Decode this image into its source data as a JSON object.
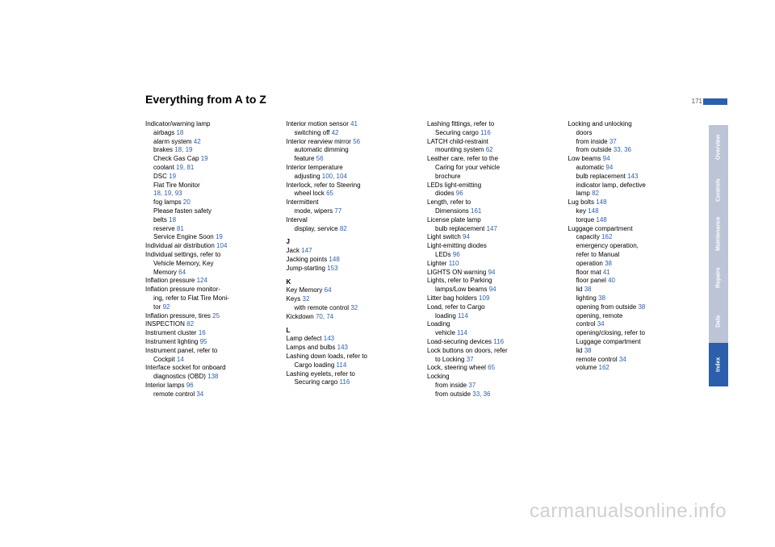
{
  "title": "Everything from A to Z",
  "pageNumber": "171",
  "watermark": "carmanualsonline.info",
  "sidebar": [
    {
      "label": "Overview",
      "active": false
    },
    {
      "label": "Controls",
      "active": false
    },
    {
      "label": "Maintenance",
      "active": false
    },
    {
      "label": "Repairs",
      "active": false
    },
    {
      "label": "Data",
      "active": false
    },
    {
      "label": "Index",
      "active": true
    }
  ],
  "columns": [
    [
      {
        "t": "Indicator/warning lamp"
      },
      {
        "t": "airbags ",
        "p": "18",
        "i": 1
      },
      {
        "t": "alarm system ",
        "p": "42",
        "i": 1
      },
      {
        "t": "brakes ",
        "p": "18, 19",
        "i": 1
      },
      {
        "t": "Check Gas Cap ",
        "p": "19",
        "i": 1
      },
      {
        "t": "coolant ",
        "p": "19, 81",
        "i": 1
      },
      {
        "t": "DSC ",
        "p": "19",
        "i": 1
      },
      {
        "t": "Flat Tire Monitor",
        "i": 1
      },
      {
        "t": "",
        "p": "18, 19, 93",
        "i": 1
      },
      {
        "t": "fog lamps ",
        "p": "20",
        "i": 1
      },
      {
        "t": "Please fasten safety",
        "i": 1
      },
      {
        "t": "belts ",
        "p": "18",
        "i": 1
      },
      {
        "t": "reserve ",
        "p": "81",
        "i": 1
      },
      {
        "t": "Service Engine Soon ",
        "p": "19",
        "i": 1
      },
      {
        "t": "Individual air distribution ",
        "p": "104"
      },
      {
        "t": "Individual settings, refer to"
      },
      {
        "t": "Vehicle Memory, Key",
        "i": 1
      },
      {
        "t": "Memory ",
        "p": "64",
        "i": 1
      },
      {
        "t": "Inflation pressure ",
        "p": "124"
      },
      {
        "t": "Inflation pressure monitor-"
      },
      {
        "t": "ing, refer to Flat Tire Moni-",
        "i": 1
      },
      {
        "t": "tor ",
        "p": "92",
        "i": 1
      },
      {
        "t": "Inflation pressure, tires ",
        "p": "25"
      },
      {
        "t": "INSPECTION ",
        "p": "82"
      },
      {
        "t": "Instrument cluster ",
        "p": "16"
      },
      {
        "t": "Instrument lighting ",
        "p": "95"
      },
      {
        "t": "Instrument panel, refer to"
      },
      {
        "t": "Cockpit ",
        "p": "14",
        "i": 1
      },
      {
        "t": "Interface socket for onboard"
      },
      {
        "t": "diagnostics (OBD) ",
        "p": "138",
        "i": 1
      },
      {
        "t": "Interior lamps ",
        "p": "96"
      },
      {
        "t": "remote control ",
        "p": "34",
        "i": 1
      }
    ],
    [
      {
        "t": "Interior motion sensor ",
        "p": "41"
      },
      {
        "t": "switching off ",
        "p": "42",
        "i": 1
      },
      {
        "t": "Interior rearview mirror ",
        "p": "56"
      },
      {
        "t": "automatic dimming",
        "i": 1
      },
      {
        "t": "feature ",
        "p": "56",
        "i": 1
      },
      {
        "t": "Interior temperature"
      },
      {
        "t": "adjusting ",
        "p": "100, 104",
        "i": 1
      },
      {
        "t": "Interlock, refer to Steering"
      },
      {
        "t": "wheel lock ",
        "p": "65",
        "i": 1
      },
      {
        "t": "Intermittent"
      },
      {
        "t": "mode, wipers ",
        "p": "77",
        "i": 1
      },
      {
        "t": "Interval"
      },
      {
        "t": "display, service ",
        "p": "82",
        "i": 1
      },
      {
        "letter": "J"
      },
      {
        "t": "Jack ",
        "p": "147"
      },
      {
        "t": "Jacking points ",
        "p": "148"
      },
      {
        "t": "Jump-starting ",
        "p": "153"
      },
      {
        "letter": "K"
      },
      {
        "t": "Key Memory ",
        "p": "64"
      },
      {
        "t": "Keys ",
        "p": "32"
      },
      {
        "t": "with remote control ",
        "p": "32",
        "i": 1
      },
      {
        "t": "Kickdown ",
        "p": "70, 74"
      },
      {
        "letter": "L"
      },
      {
        "t": "Lamp defect ",
        "p": "143"
      },
      {
        "t": "Lamps and bulbs ",
        "p": "143"
      },
      {
        "t": "Lashing down loads, refer to"
      },
      {
        "t": "Cargo loading ",
        "p": "114",
        "i": 1
      },
      {
        "t": "Lashing eyelets, refer to"
      },
      {
        "t": "Securing cargo ",
        "p": "116",
        "i": 1
      }
    ],
    [
      {
        "t": "Lashing fittings, refer to"
      },
      {
        "t": "Securing cargo ",
        "p": "116",
        "i": 1
      },
      {
        "t": "LATCH child-restraint"
      },
      {
        "t": "mounting system ",
        "p": "62",
        "i": 1
      },
      {
        "t": "Leather care, refer to the"
      },
      {
        "t": "Caring for your vehicle",
        "i": 1
      },
      {
        "t": "brochure",
        "i": 1
      },
      {
        "t": "LEDs light-emitting"
      },
      {
        "t": "diodes ",
        "p": "96",
        "i": 1
      },
      {
        "t": "Length, refer to"
      },
      {
        "t": "Dimensions ",
        "p": "161",
        "i": 1
      },
      {
        "t": "License plate lamp"
      },
      {
        "t": "bulb replacement ",
        "p": "147",
        "i": 1
      },
      {
        "t": "Light switch ",
        "p": "94"
      },
      {
        "t": "Light-emitting diodes"
      },
      {
        "t": "LEDs ",
        "p": "96",
        "i": 1
      },
      {
        "t": "Lighter ",
        "p": "110"
      },
      {
        "t": "LIGHTS ON warning ",
        "p": "94"
      },
      {
        "t": "Lights, refer to Parking"
      },
      {
        "t": "lamps/Low beams ",
        "p": "94",
        "i": 1
      },
      {
        "t": "Litter bag holders ",
        "p": "109"
      },
      {
        "t": "Load, refer to Cargo"
      },
      {
        "t": "loading ",
        "p": "114",
        "i": 1
      },
      {
        "t": "Loading"
      },
      {
        "t": "vehicle ",
        "p": "114",
        "i": 1
      },
      {
        "t": "Load-securing devices ",
        "p": "116"
      },
      {
        "t": "Lock buttons on doors, refer"
      },
      {
        "t": "to Locking ",
        "p": "37",
        "i": 1
      },
      {
        "t": "Lock, steering wheel ",
        "p": "65"
      },
      {
        "t": "Locking"
      },
      {
        "t": "from inside ",
        "p": "37",
        "i": 1
      },
      {
        "t": "from outside ",
        "p": "33, 36",
        "i": 1
      }
    ],
    [
      {
        "t": "Locking and unlocking"
      },
      {
        "t": "doors",
        "i": 1
      },
      {
        "t": "from inside ",
        "p": "37",
        "i": 1
      },
      {
        "t": "from outside ",
        "p": "33, 36",
        "i": 1
      },
      {
        "t": "Low beams ",
        "p": "94"
      },
      {
        "t": "automatic ",
        "p": "94",
        "i": 1
      },
      {
        "t": "bulb replacement ",
        "p": "143",
        "i": 1
      },
      {
        "t": "indicator lamp, defective",
        "i": 1
      },
      {
        "t": "lamp ",
        "p": "82",
        "i": 1
      },
      {
        "t": "Lug bolts ",
        "p": "148"
      },
      {
        "t": "key ",
        "p": "148",
        "i": 1
      },
      {
        "t": "torque ",
        "p": "148",
        "i": 1
      },
      {
        "t": "Luggage compartment"
      },
      {
        "t": "capacity ",
        "p": "162",
        "i": 1
      },
      {
        "t": "emergency operation,",
        "i": 1
      },
      {
        "t": "refer to Manual",
        "i": 1
      },
      {
        "t": "operation ",
        "p": "38",
        "i": 1
      },
      {
        "t": "floor mat ",
        "p": "41",
        "i": 1
      },
      {
        "t": "floor panel ",
        "p": "40",
        "i": 1
      },
      {
        "t": "lid ",
        "p": "38",
        "i": 1
      },
      {
        "t": "lighting ",
        "p": "38",
        "i": 1
      },
      {
        "t": "opening from outside ",
        "p": "38",
        "i": 1
      },
      {
        "t": "opening, remote",
        "i": 1
      },
      {
        "t": "control ",
        "p": "34",
        "i": 1
      },
      {
        "t": "opening/closing, refer to",
        "i": 1
      },
      {
        "t": "Luggage compartment",
        "i": 1
      },
      {
        "t": "lid ",
        "p": "38",
        "i": 1
      },
      {
        "t": "remote control ",
        "p": "34",
        "i": 1
      },
      {
        "t": "volume ",
        "p": "162",
        "i": 1
      }
    ]
  ]
}
